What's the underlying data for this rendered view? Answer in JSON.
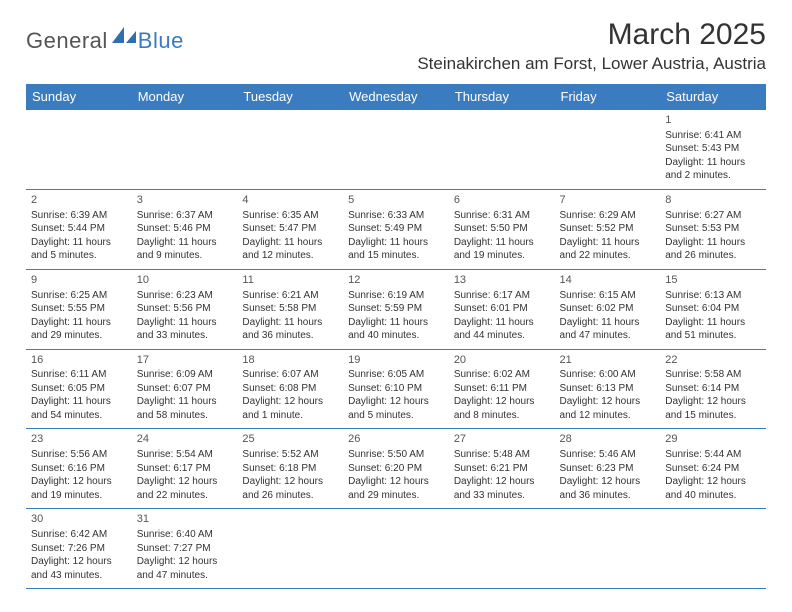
{
  "brand": {
    "text_general": "General",
    "text_blue": "Blue",
    "shape_color": "#2f6fb0"
  },
  "header": {
    "month_title": "March 2025",
    "location": "Steinakirchen am Forst, Lower Austria, Austria"
  },
  "theme": {
    "header_bg": "#3b7bbf",
    "header_text": "#ffffff",
    "cell_border": "#3b7bbf",
    "text_color": "#333333",
    "muted_text": "#555555",
    "background_color": "#ffffff",
    "daynum_fontsize": 11,
    "cell_fontsize": 10,
    "title_fontsize": 30,
    "location_fontsize": 17,
    "dayheader_fontsize": 13
  },
  "calendar": {
    "type": "table",
    "day_headers": [
      "Sunday",
      "Monday",
      "Tuesday",
      "Wednesday",
      "Thursday",
      "Friday",
      "Saturday"
    ],
    "weeks": [
      [
        null,
        null,
        null,
        null,
        null,
        null,
        {
          "n": "1",
          "sunrise": "Sunrise: 6:41 AM",
          "sunset": "Sunset: 5:43 PM",
          "day1": "Daylight: 11 hours",
          "day2": "and 2 minutes."
        }
      ],
      [
        {
          "n": "2",
          "sunrise": "Sunrise: 6:39 AM",
          "sunset": "Sunset: 5:44 PM",
          "day1": "Daylight: 11 hours",
          "day2": "and 5 minutes."
        },
        {
          "n": "3",
          "sunrise": "Sunrise: 6:37 AM",
          "sunset": "Sunset: 5:46 PM",
          "day1": "Daylight: 11 hours",
          "day2": "and 9 minutes."
        },
        {
          "n": "4",
          "sunrise": "Sunrise: 6:35 AM",
          "sunset": "Sunset: 5:47 PM",
          "day1": "Daylight: 11 hours",
          "day2": "and 12 minutes."
        },
        {
          "n": "5",
          "sunrise": "Sunrise: 6:33 AM",
          "sunset": "Sunset: 5:49 PM",
          "day1": "Daylight: 11 hours",
          "day2": "and 15 minutes."
        },
        {
          "n": "6",
          "sunrise": "Sunrise: 6:31 AM",
          "sunset": "Sunset: 5:50 PM",
          "day1": "Daylight: 11 hours",
          "day2": "and 19 minutes."
        },
        {
          "n": "7",
          "sunrise": "Sunrise: 6:29 AM",
          "sunset": "Sunset: 5:52 PM",
          "day1": "Daylight: 11 hours",
          "day2": "and 22 minutes."
        },
        {
          "n": "8",
          "sunrise": "Sunrise: 6:27 AM",
          "sunset": "Sunset: 5:53 PM",
          "day1": "Daylight: 11 hours",
          "day2": "and 26 minutes."
        }
      ],
      [
        {
          "n": "9",
          "sunrise": "Sunrise: 6:25 AM",
          "sunset": "Sunset: 5:55 PM",
          "day1": "Daylight: 11 hours",
          "day2": "and 29 minutes."
        },
        {
          "n": "10",
          "sunrise": "Sunrise: 6:23 AM",
          "sunset": "Sunset: 5:56 PM",
          "day1": "Daylight: 11 hours",
          "day2": "and 33 minutes."
        },
        {
          "n": "11",
          "sunrise": "Sunrise: 6:21 AM",
          "sunset": "Sunset: 5:58 PM",
          "day1": "Daylight: 11 hours",
          "day2": "and 36 minutes."
        },
        {
          "n": "12",
          "sunrise": "Sunrise: 6:19 AM",
          "sunset": "Sunset: 5:59 PM",
          "day1": "Daylight: 11 hours",
          "day2": "and 40 minutes."
        },
        {
          "n": "13",
          "sunrise": "Sunrise: 6:17 AM",
          "sunset": "Sunset: 6:01 PM",
          "day1": "Daylight: 11 hours",
          "day2": "and 44 minutes."
        },
        {
          "n": "14",
          "sunrise": "Sunrise: 6:15 AM",
          "sunset": "Sunset: 6:02 PM",
          "day1": "Daylight: 11 hours",
          "day2": "and 47 minutes."
        },
        {
          "n": "15",
          "sunrise": "Sunrise: 6:13 AM",
          "sunset": "Sunset: 6:04 PM",
          "day1": "Daylight: 11 hours",
          "day2": "and 51 minutes."
        }
      ],
      [
        {
          "n": "16",
          "sunrise": "Sunrise: 6:11 AM",
          "sunset": "Sunset: 6:05 PM",
          "day1": "Daylight: 11 hours",
          "day2": "and 54 minutes."
        },
        {
          "n": "17",
          "sunrise": "Sunrise: 6:09 AM",
          "sunset": "Sunset: 6:07 PM",
          "day1": "Daylight: 11 hours",
          "day2": "and 58 minutes."
        },
        {
          "n": "18",
          "sunrise": "Sunrise: 6:07 AM",
          "sunset": "Sunset: 6:08 PM",
          "day1": "Daylight: 12 hours",
          "day2": "and 1 minute."
        },
        {
          "n": "19",
          "sunrise": "Sunrise: 6:05 AM",
          "sunset": "Sunset: 6:10 PM",
          "day1": "Daylight: 12 hours",
          "day2": "and 5 minutes."
        },
        {
          "n": "20",
          "sunrise": "Sunrise: 6:02 AM",
          "sunset": "Sunset: 6:11 PM",
          "day1": "Daylight: 12 hours",
          "day2": "and 8 minutes."
        },
        {
          "n": "21",
          "sunrise": "Sunrise: 6:00 AM",
          "sunset": "Sunset: 6:13 PM",
          "day1": "Daylight: 12 hours",
          "day2": "and 12 minutes."
        },
        {
          "n": "22",
          "sunrise": "Sunrise: 5:58 AM",
          "sunset": "Sunset: 6:14 PM",
          "day1": "Daylight: 12 hours",
          "day2": "and 15 minutes."
        }
      ],
      [
        {
          "n": "23",
          "sunrise": "Sunrise: 5:56 AM",
          "sunset": "Sunset: 6:16 PM",
          "day1": "Daylight: 12 hours",
          "day2": "and 19 minutes."
        },
        {
          "n": "24",
          "sunrise": "Sunrise: 5:54 AM",
          "sunset": "Sunset: 6:17 PM",
          "day1": "Daylight: 12 hours",
          "day2": "and 22 minutes."
        },
        {
          "n": "25",
          "sunrise": "Sunrise: 5:52 AM",
          "sunset": "Sunset: 6:18 PM",
          "day1": "Daylight: 12 hours",
          "day2": "and 26 minutes."
        },
        {
          "n": "26",
          "sunrise": "Sunrise: 5:50 AM",
          "sunset": "Sunset: 6:20 PM",
          "day1": "Daylight: 12 hours",
          "day2": "and 29 minutes."
        },
        {
          "n": "27",
          "sunrise": "Sunrise: 5:48 AM",
          "sunset": "Sunset: 6:21 PM",
          "day1": "Daylight: 12 hours",
          "day2": "and 33 minutes."
        },
        {
          "n": "28",
          "sunrise": "Sunrise: 5:46 AM",
          "sunset": "Sunset: 6:23 PM",
          "day1": "Daylight: 12 hours",
          "day2": "and 36 minutes."
        },
        {
          "n": "29",
          "sunrise": "Sunrise: 5:44 AM",
          "sunset": "Sunset: 6:24 PM",
          "day1": "Daylight: 12 hours",
          "day2": "and 40 minutes."
        }
      ],
      [
        {
          "n": "30",
          "sunrise": "Sunrise: 6:42 AM",
          "sunset": "Sunset: 7:26 PM",
          "day1": "Daylight: 12 hours",
          "day2": "and 43 minutes."
        },
        {
          "n": "31",
          "sunrise": "Sunrise: 6:40 AM",
          "sunset": "Sunset: 7:27 PM",
          "day1": "Daylight: 12 hours",
          "day2": "and 47 minutes."
        },
        null,
        null,
        null,
        null,
        null
      ]
    ]
  }
}
